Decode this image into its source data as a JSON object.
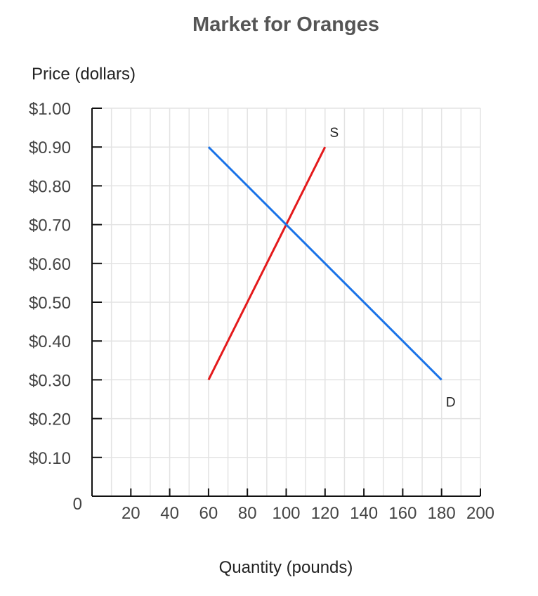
{
  "chart_data": {
    "type": "line",
    "title": "Market for Oranges",
    "xlabel": "Quantity (pounds)",
    "ylabel": "Price (dollars)",
    "xlim": [
      0,
      200
    ],
    "ylim": [
      0,
      1.0
    ],
    "x_ticks": [
      {
        "value": 20,
        "label": "20"
      },
      {
        "value": 40,
        "label": "40"
      },
      {
        "value": 60,
        "label": "60"
      },
      {
        "value": 80,
        "label": "80"
      },
      {
        "value": 100,
        "label": "100"
      },
      {
        "value": 120,
        "label": "120"
      },
      {
        "value": 140,
        "label": "140"
      },
      {
        "value": 160,
        "label": "160"
      },
      {
        "value": 180,
        "label": "180"
      },
      {
        "value": 200,
        "label": "200"
      }
    ],
    "y_ticks": [
      {
        "value": 0.1,
        "label": "$0.10"
      },
      {
        "value": 0.2,
        "label": "$0.20"
      },
      {
        "value": 0.3,
        "label": "$0.30"
      },
      {
        "value": 0.4,
        "label": "$0.40"
      },
      {
        "value": 0.5,
        "label": "$0.50"
      },
      {
        "value": 0.6,
        "label": "$0.60"
      },
      {
        "value": 0.7,
        "label": "$0.70"
      },
      {
        "value": 0.8,
        "label": "$0.80"
      },
      {
        "value": 0.9,
        "label": "$0.90"
      },
      {
        "value": 1.0,
        "label": "$1.00"
      }
    ],
    "origin_label": "0",
    "grid": true,
    "minor_grid_step_x": 10,
    "series": [
      {
        "name": "S",
        "color": "#e41a1c",
        "points": [
          {
            "x": 60,
            "y": 0.3
          },
          {
            "x": 120,
            "y": 0.9
          }
        ]
      },
      {
        "name": "D",
        "color": "#1a73e8",
        "points": [
          {
            "x": 60,
            "y": 0.9
          },
          {
            "x": 180,
            "y": 0.3
          }
        ]
      }
    ]
  }
}
